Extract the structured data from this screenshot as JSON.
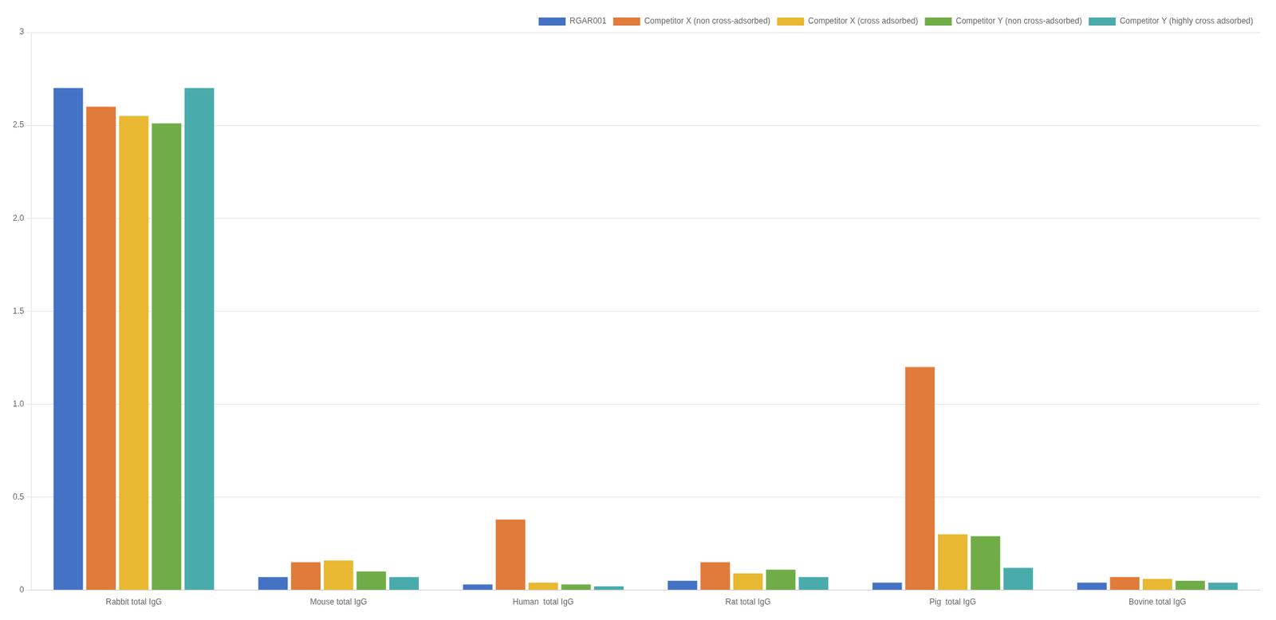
{
  "chart_data": {
    "type": "bar",
    "categories": [
      "Rabbit total IgG",
      "Mouse total IgG",
      "Human  total IgG",
      "Rat total IgG",
      "Pig  total IgG",
      "Bovine total IgG"
    ],
    "series": [
      {
        "name": "RGAR001",
        "color": "#4472C4",
        "values": [
          2.7,
          0.07,
          0.03,
          0.05,
          0.04,
          0.04
        ]
      },
      {
        "name": "Competitor X (non cross-adsorbed)",
        "color": "#E07B39",
        "values": [
          2.6,
          0.15,
          0.38,
          0.15,
          1.2,
          0.07
        ]
      },
      {
        "name": "Competitor X (cross adsorbed)",
        "color": "#E8B832",
        "values": [
          2.55,
          0.16,
          0.04,
          0.09,
          0.3,
          0.06
        ]
      },
      {
        "name": "Competitor Y (non cross-adsorbed)",
        "color": "#70AD47",
        "values": [
          2.51,
          0.1,
          0.03,
          0.11,
          0.29,
          0.05
        ]
      },
      {
        "name": "Competitor Y (highly cross adsorbed)",
        "color": "#4AABAB",
        "values": [
          2.7,
          0.07,
          0.02,
          0.07,
          0.12,
          0.04
        ]
      }
    ],
    "ylim": [
      0,
      3.0
    ],
    "yticks": [
      0,
      0.5,
      {
        "value": 1.0,
        "label": "1.0"
      },
      1.5,
      {
        "value": 2.0,
        "label": "2.0"
      },
      2.5,
      3
    ],
    "grid": true,
    "legend": "upper right"
  }
}
